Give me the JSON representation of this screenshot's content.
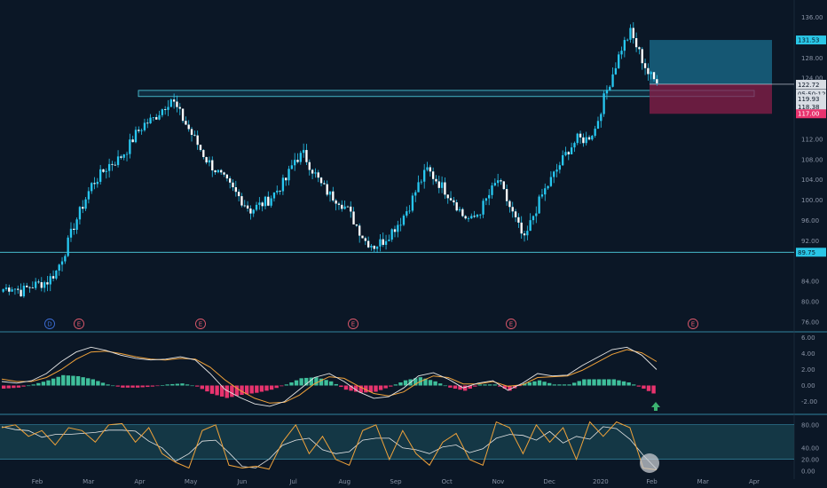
{
  "chart_data": [
    {
      "type": "candlestick",
      "pane": "price",
      "x_labels": [
        "Feb",
        "Mar",
        "Apr",
        "May",
        "Jun",
        "Jul",
        "Aug",
        "Sep",
        "Oct",
        "Nov",
        "Dec",
        "2020",
        "Feb",
        "Mar",
        "Apr"
      ],
      "y_ticks": [
        "136.00",
        "128.00",
        "124.00",
        "112.00",
        "108.00",
        "104.00",
        "100.00",
        "96.00",
        "92.00",
        "84.00",
        "80.00",
        "76.00"
      ],
      "ylim": [
        76,
        138
      ],
      "price_tags": [
        {
          "label": "131.53",
          "value": 131.53,
          "style": "cyan"
        },
        {
          "label": "122.81",
          "value": 122.81,
          "style": "light"
        },
        {
          "label": "122.72",
          "value": 122.72,
          "style": "light"
        },
        {
          "label": "05:50:12",
          "value": 120.9,
          "style": "light"
        },
        {
          "label": "119.93",
          "value": 119.93,
          "style": "light"
        },
        {
          "label": "118.38",
          "value": 118.38,
          "style": "light"
        },
        {
          "label": "117.00",
          "value": 117.0,
          "style": "pink"
        },
        {
          "label": "89.75",
          "value": 89.75,
          "style": "cyan"
        }
      ],
      "support_level": 89.75,
      "resistance_zone": [
        120.4,
        121.6
      ],
      "position_box": {
        "entry": 122.81,
        "target": 131.53,
        "stop": 117.0
      },
      "close_approx": [
        82.5,
        83,
        82,
        83,
        83.5,
        84,
        86,
        90,
        95,
        99,
        103,
        105,
        107,
        108,
        110,
        113,
        115,
        116,
        118,
        120,
        117,
        114,
        111,
        108,
        106,
        104,
        102,
        100,
        98,
        99,
        100,
        102,
        104,
        108,
        109,
        106,
        103,
        101,
        100,
        98,
        95,
        92,
        91,
        92,
        94,
        96,
        99,
        103,
        106,
        104,
        102,
        100,
        97,
        96,
        98,
        101,
        104,
        100,
        96,
        92,
        97,
        101,
        104,
        107,
        110,
        112,
        112,
        114,
        120,
        125,
        130,
        133,
        129,
        125,
        123
      ],
      "event_markers": [
        {
          "label": "D",
          "color": "#3d6fd9"
        },
        {
          "label": "E",
          "color": "#e05a6d"
        },
        {
          "label": "E",
          "color": "#e05a6d"
        },
        {
          "label": "E",
          "color": "#e05a6d"
        },
        {
          "label": "E",
          "color": "#e05a6d"
        },
        {
          "label": "E",
          "color": "#e05a6d"
        }
      ],
      "colors": {
        "candle": "#27c7f0",
        "background": "#0b1726",
        "support": "#4fd3e6",
        "target_zone": "#1a6e8e",
        "stop_zone": "#8a1f49"
      }
    },
    {
      "type": "macd",
      "pane": "macd",
      "y_ticks": [
        "6.00",
        "4.00",
        "2.00",
        "0.00",
        "-2.00"
      ],
      "ylim": [
        -3.5,
        6.5
      ],
      "macd_approx": [
        0.5,
        0.3,
        0.6,
        1.5,
        3.0,
        4.2,
        4.8,
        4.4,
        3.8,
        3.4,
        3.2,
        3.3,
        3.6,
        3.2,
        1.5,
        -0.5,
        -1.5,
        -2.3,
        -2.6,
        -2.0,
        -0.5,
        1.0,
        1.5,
        0.5,
        -0.8,
        -1.6,
        -1.4,
        -0.3,
        1.2,
        1.6,
        0.8,
        -0.3,
        0.3,
        0.6,
        -0.6,
        0.3,
        1.5,
        1.2,
        1.3,
        2.5,
        3.5,
        4.5,
        4.8,
        3.8,
        2.0
      ],
      "signal_approx": [
        0.8,
        0.5,
        0.5,
        1.0,
        2.0,
        3.3,
        4.2,
        4.3,
        4.0,
        3.6,
        3.3,
        3.2,
        3.4,
        3.3,
        2.3,
        0.7,
        -0.6,
        -1.6,
        -2.2,
        -2.1,
        -1.2,
        0.2,
        1.1,
        0.9,
        -0.1,
        -1.0,
        -1.3,
        -0.8,
        0.4,
        1.2,
        1.0,
        0.2,
        0.2,
        0.5,
        -0.1,
        0.1,
        1.0,
        1.1,
        1.2,
        1.9,
        2.9,
        3.9,
        4.5,
        4.1,
        3.0
      ],
      "colors": {
        "macd": "#e6e6e6",
        "signal": "#f0a23a",
        "hist_pos": "#3fbf9b",
        "hist_neg": "#e8336e",
        "arrow": "#3cb371"
      }
    },
    {
      "type": "stochastic",
      "pane": "stoch",
      "y_ticks": [
        "80.00",
        "40.00",
        "20.00",
        "0.00"
      ],
      "ylim": [
        -5,
        95
      ],
      "k_approx": [
        75,
        80,
        60,
        70,
        45,
        75,
        70,
        50,
        80,
        82,
        50,
        75,
        30,
        15,
        5,
        70,
        80,
        10,
        5,
        8,
        3,
        50,
        80,
        30,
        60,
        20,
        10,
        70,
        80,
        20,
        70,
        30,
        10,
        50,
        65,
        20,
        10,
        85,
        75,
        30,
        80,
        50,
        75,
        20,
        85,
        60,
        85,
        75,
        5,
        2
      ],
      "band": [
        20,
        80
      ],
      "colors": {
        "k": "#f0a23a",
        "d": "#e6e6e6",
        "band": "#16404e"
      }
    }
  ]
}
